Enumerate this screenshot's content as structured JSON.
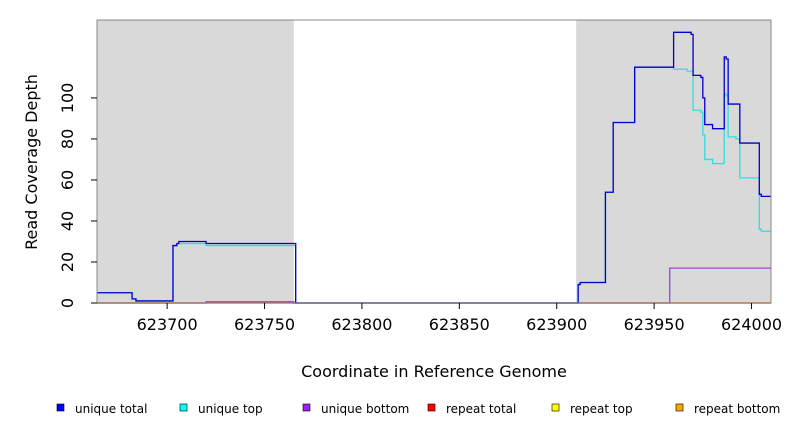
{
  "chart_data": {
    "type": "line",
    "xlabel": "Coordinate in Reference Genome",
    "ylabel": "Read Coverage Depth",
    "xlim": [
      623664,
      624010
    ],
    "ylim": [
      0,
      138
    ],
    "x_ticks": [
      623700,
      623750,
      623800,
      623850,
      623900,
      623950,
      624000
    ],
    "y_ticks": [
      0,
      20,
      40,
      60,
      80,
      100
    ],
    "shaded_regions": [
      {
        "x": [
          623664,
          623765
        ],
        "color": "#d9d9d9"
      },
      {
        "x": [
          623910,
          624010
        ],
        "color": "#d9d9d9"
      }
    ],
    "legend_placement": "bottom",
    "series": [
      {
        "name": "unique total",
        "color": "#0000cc",
        "x": [
          623664,
          623681,
          623682,
          623684,
          623702,
          623703,
          623704,
          623705,
          623706,
          623718,
          623720,
          623765,
          623766,
          623910,
          623911,
          623912,
          623925,
          623929,
          623940,
          623957,
          623960,
          623969,
          623970,
          623974,
          623975,
          623976,
          623980,
          623986,
          623987,
          623988,
          623992,
          623994,
          624003,
          624004,
          624005,
          624010
        ],
        "y": [
          5,
          5,
          2,
          1,
          1,
          28,
          28,
          29,
          30,
          30,
          29,
          29,
          0,
          0,
          9,
          10,
          54,
          88,
          115,
          115,
          132,
          131,
          111,
          110,
          100,
          87,
          85,
          120,
          119,
          97,
          97,
          78,
          78,
          53,
          52,
          52
        ]
      },
      {
        "name": "unique top",
        "color": "#33dddd",
        "x": [
          623664,
          623681,
          623682,
          623684,
          623702,
          623703,
          623704,
          623705,
          623706,
          623718,
          623720,
          623765,
          623766,
          623910,
          623911,
          623912,
          623925,
          623929,
          623940,
          623957,
          623960,
          623964,
          623967,
          623969,
          623970,
          623974,
          623975,
          623976,
          623980,
          623986,
          623987,
          623988,
          623992,
          623994,
          624003,
          624004,
          624005,
          624010
        ],
        "y": [
          5,
          5,
          2,
          1,
          1,
          28,
          28,
          29,
          29,
          29,
          28,
          28,
          0,
          0,
          9,
          10,
          54,
          88,
          115,
          115,
          114,
          114,
          113,
          113,
          94,
          93,
          82,
          70,
          68,
          102,
          101,
          81,
          80,
          61,
          61,
          36,
          35,
          35
        ]
      },
      {
        "name": "unique bottom",
        "color": "#a040e0",
        "x": [
          623664,
          623700,
          623720,
          623765,
          623957,
          623958,
          624010
        ],
        "y": [
          0,
          0,
          0.6,
          0,
          0,
          17,
          17
        ]
      },
      {
        "name": "repeat total",
        "color": "#ff0000",
        "x": [
          623664,
          624010
        ],
        "y": [
          0,
          0
        ]
      },
      {
        "name": "repeat top",
        "color": "#ffff00",
        "x": [
          623664,
          624010
        ],
        "y": [
          0,
          0
        ]
      },
      {
        "name": "repeat bottom",
        "color": "#f0a000",
        "x": [
          623664,
          623700,
          623720,
          623765,
          623960,
          624010
        ],
        "y": [
          0,
          0,
          0.6,
          0,
          0,
          0
        ]
      }
    ]
  },
  "legend": [
    {
      "label": "unique total",
      "color": "#0000ff"
    },
    {
      "label": "unique top",
      "color": "#00ffff"
    },
    {
      "label": "unique bottom",
      "color": "#a020f0"
    },
    {
      "label": "repeat total",
      "color": "#ff0000"
    },
    {
      "label": "repeat top",
      "color": "#ffff00"
    },
    {
      "label": "repeat bottom",
      "color": "#ffa500"
    }
  ]
}
